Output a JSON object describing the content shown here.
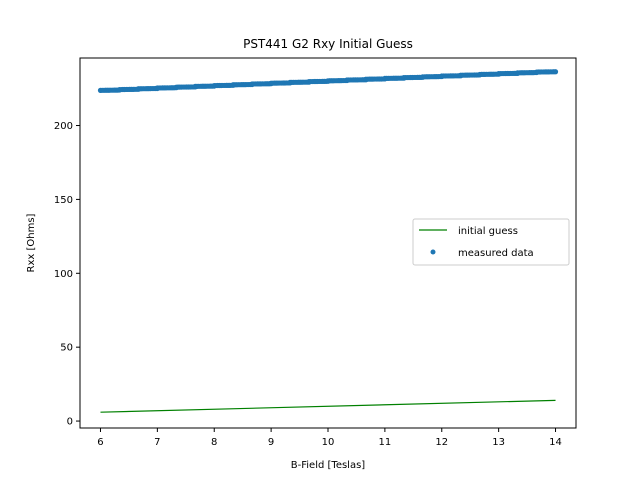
{
  "chart_data": {
    "type": "scatter",
    "title": "PST441 G2 Rxy Initial Guess",
    "xlabel": "B-Field [Teslas]",
    "ylabel": "Rxx [Ohms]",
    "xlim": [
      5.64,
      14.36
    ],
    "ylim": [
      -4.7,
      245.7
    ],
    "x_ticks": [
      6,
      7,
      8,
      9,
      10,
      11,
      12,
      13,
      14
    ],
    "y_ticks": [
      0,
      50,
      100,
      150,
      200
    ],
    "grid": false,
    "legend_position": "center-right",
    "series": [
      {
        "name": "initial guess",
        "kind": "line",
        "color": "#008000",
        "x": [
          6,
          14
        ],
        "y": [
          6.0,
          14.0
        ]
      },
      {
        "name": "measured data",
        "kind": "scatter",
        "color": "#1f77b4",
        "x_range": [
          6,
          14
        ],
        "y_start": 223.8,
        "y_end": 236.2,
        "step_count": 24,
        "points_per_step": 12
      }
    ]
  }
}
